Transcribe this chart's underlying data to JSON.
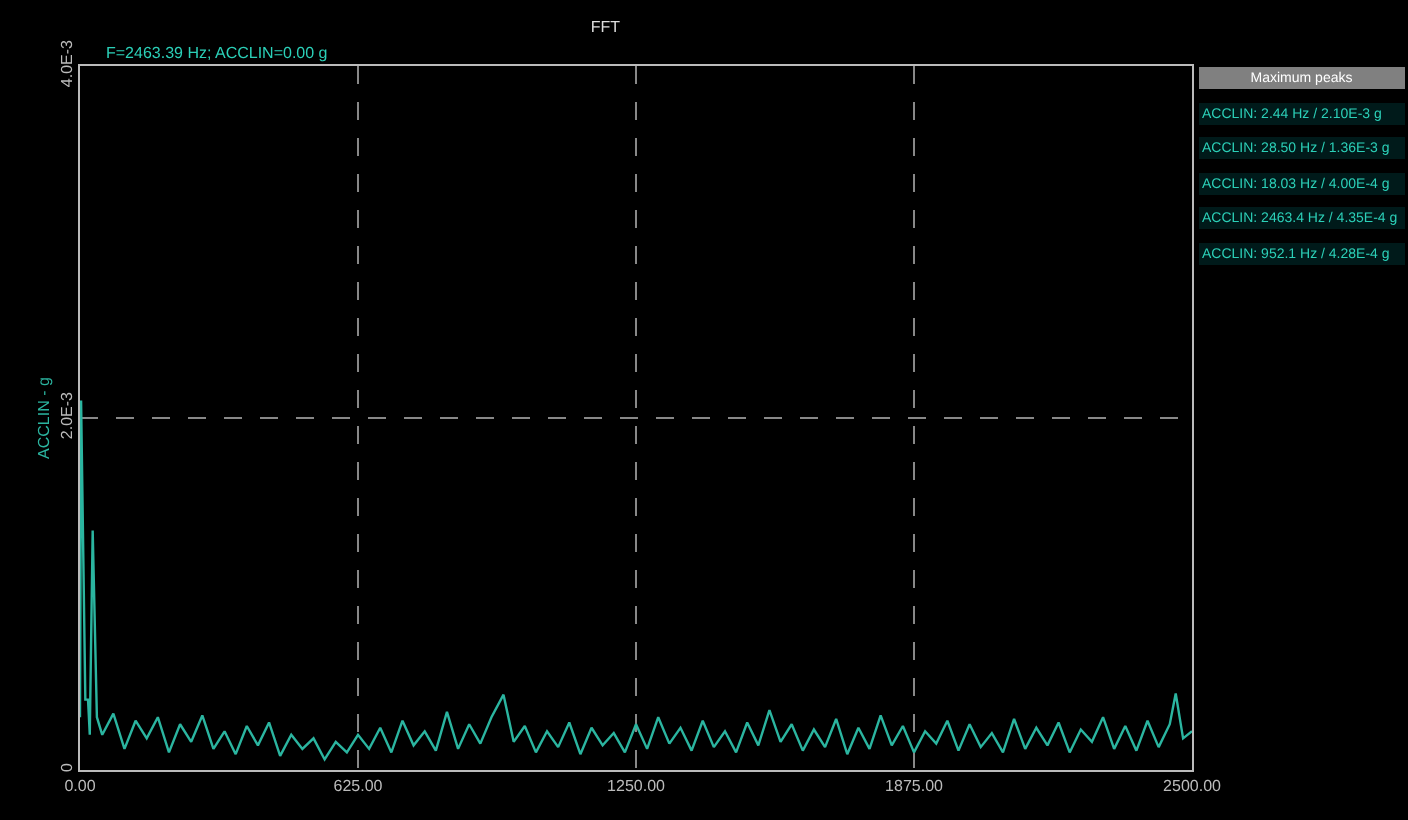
{
  "chart_data": {
    "type": "line",
    "title": "FFT",
    "ylabel": "ACCLIN - g",
    "annotations": [
      "F=2463.39 Hz; ACCLIN=0.00 g",
      "Maximum peaks",
      "ACCLIN: 2.44 Hz / 2.10E-3 g",
      "ACCLIN: 28.50 Hz / 1.36E-3 g",
      "ACCLIN: 18.03 Hz / 4.00E-4 g",
      "ACCLIN: 2463.4 Hz / 4.35E-4 g",
      "ACCLIN: 952.1 Hz / 4.28E-4 g"
    ],
    "x": [
      0,
      2.44,
      12,
      18.03,
      22,
      28.5,
      38,
      50,
      75,
      100,
      125,
      150,
      175,
      200,
      225,
      250,
      275,
      300,
      325,
      350,
      375,
      400,
      425,
      450,
      475,
      500,
      525,
      550,
      575,
      600,
      625,
      650,
      675,
      700,
      725,
      750,
      775,
      800,
      825,
      850,
      875,
      900,
      925,
      952.1,
      975,
      1000,
      1025,
      1050,
      1075,
      1100,
      1125,
      1150,
      1175,
      1200,
      1225,
      1250,
      1275,
      1300,
      1325,
      1350,
      1375,
      1400,
      1425,
      1450,
      1475,
      1500,
      1525,
      1550,
      1575,
      1600,
      1625,
      1650,
      1675,
      1700,
      1725,
      1750,
      1775,
      1800,
      1825,
      1850,
      1875,
      1900,
      1925,
      1950,
      1975,
      2000,
      2025,
      2050,
      2075,
      2100,
      2125,
      2150,
      2175,
      2200,
      2225,
      2250,
      2275,
      2300,
      2325,
      2350,
      2375,
      2400,
      2425,
      2450,
      2463.4,
      2480,
      2500
    ],
    "series": [
      {
        "color": "#2bb5a0",
        "values": [
          0.0003,
          0.0021,
          0.0004,
          0.0004,
          0.0002,
          0.00136,
          0.0003,
          0.0002,
          0.00032,
          0.00012,
          0.00028,
          0.00018,
          0.0003,
          0.0001,
          0.00026,
          0.00016,
          0.00031,
          0.00012,
          0.00022,
          9e-05,
          0.00025,
          0.00014,
          0.00027,
          8e-05,
          0.0002,
          0.00012,
          0.00018,
          6e-05,
          0.00016,
          0.0001,
          0.0002,
          0.00012,
          0.00024,
          0.0001,
          0.00028,
          0.00014,
          0.00022,
          0.00011,
          0.00033,
          0.00012,
          0.00026,
          0.00015,
          0.0003,
          0.000428,
          0.00016,
          0.00025,
          0.0001,
          0.00022,
          0.00013,
          0.00027,
          9e-05,
          0.00024,
          0.00014,
          0.00021,
          0.0001,
          0.00026,
          0.00012,
          0.0003,
          0.00015,
          0.00024,
          0.00011,
          0.00028,
          0.00013,
          0.00022,
          0.0001,
          0.00027,
          0.00014,
          0.00034,
          0.00016,
          0.00026,
          0.00011,
          0.00023,
          0.00013,
          0.00029,
          9e-05,
          0.00024,
          0.00012,
          0.00031,
          0.00014,
          0.00025,
          0.0001,
          0.00022,
          0.00015,
          0.00028,
          0.00011,
          0.00026,
          0.00013,
          0.00021,
          0.0001,
          0.00029,
          0.00012,
          0.00024,
          0.00014,
          0.00027,
          0.0001,
          0.00023,
          0.00016,
          0.0003,
          0.00012,
          0.00025,
          0.00011,
          0.00028,
          0.00013,
          0.00026,
          0.000435,
          0.00018,
          0.00022
        ]
      }
    ],
    "xlim": [
      0,
      2500
    ],
    "xticks": [
      {
        "value": 0,
        "label": "0.00"
      },
      {
        "value": 625,
        "label": "625.00"
      },
      {
        "value": 1250,
        "label": "1250.00"
      },
      {
        "value": 1875,
        "label": "1875.00"
      },
      {
        "value": 2500,
        "label": "2500.00"
      }
    ],
    "ylim": [
      0,
      0.004
    ],
    "yticks": [
      {
        "value": 0,
        "label": "0"
      },
      {
        "value": 0.002,
        "label": "2.0E-3"
      },
      {
        "value": 0.004,
        "label": "4.0E-3"
      }
    ],
    "grid": true,
    "marker": "none",
    "line_style": "solid"
  }
}
